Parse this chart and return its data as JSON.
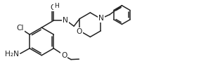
{
  "bg_color": "#ffffff",
  "line_color": "#222222",
  "line_width": 1.1,
  "font_size": 7.2,
  "fig_width": 3.13,
  "fig_height": 1.11,
  "dpi": 100,
  "xlim": [
    0,
    3.13
  ],
  "ylim": [
    0,
    1.11
  ]
}
